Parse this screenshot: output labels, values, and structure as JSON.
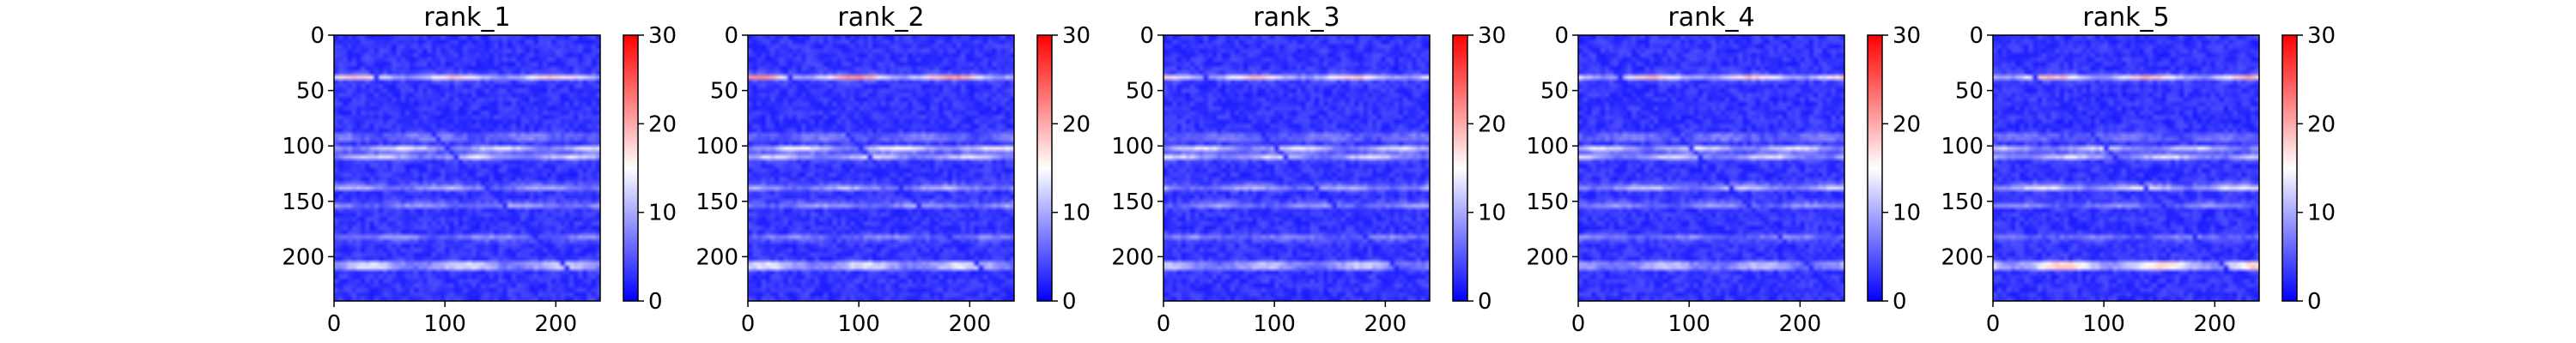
{
  "chart_data": {
    "type": "heatmap",
    "colormap": "bwr",
    "colormap_colors": [
      "#0000ff",
      "#ffffff",
      "#ff0000"
    ],
    "shared_colorbar": {
      "range": [
        0,
        30
      ],
      "ticks": [
        0,
        10,
        20,
        30
      ]
    },
    "x_range": [
      0,
      240
    ],
    "y_range": [
      240,
      0
    ],
    "x_ticks": [
      0,
      100,
      200
    ],
    "y_ticks": [
      0,
      50,
      100,
      150,
      200
    ],
    "features": {
      "diagonal": {
        "value": 2
      },
      "row_bands": [
        {
          "y": 38,
          "value": 13
        },
        {
          "y": 92,
          "value": 7
        },
        {
          "y": 103,
          "value": 11
        },
        {
          "y": 110,
          "value": 9
        },
        {
          "y": 137,
          "value": 9
        },
        {
          "y": 153,
          "value": 7
        },
        {
          "y": 183,
          "value": 6
        },
        {
          "y": 208,
          "value": 13
        }
      ]
    },
    "panels": [
      {
        "title": "rank_1",
        "bands_scale": [
          1.0,
          1.0,
          1.0,
          1.0,
          0.9,
          1.0,
          1.0,
          1.15
        ]
      },
      {
        "title": "rank_2",
        "bands_scale": [
          1.2,
          1.0,
          1.1,
          1.0,
          0.9,
          1.0,
          0.9,
          1.25
        ]
      },
      {
        "title": "rank_3",
        "bands_scale": [
          1.0,
          0.9,
          1.0,
          1.0,
          0.9,
          0.9,
          0.9,
          1.0
        ]
      },
      {
        "title": "rank_4",
        "bands_scale": [
          1.0,
          0.9,
          1.0,
          1.0,
          1.1,
          0.9,
          0.9,
          1.0
        ]
      },
      {
        "title": "rank_5",
        "bands_scale": [
          1.05,
          0.8,
          0.9,
          1.0,
          1.3,
          0.8,
          0.8,
          1.75
        ]
      }
    ]
  }
}
